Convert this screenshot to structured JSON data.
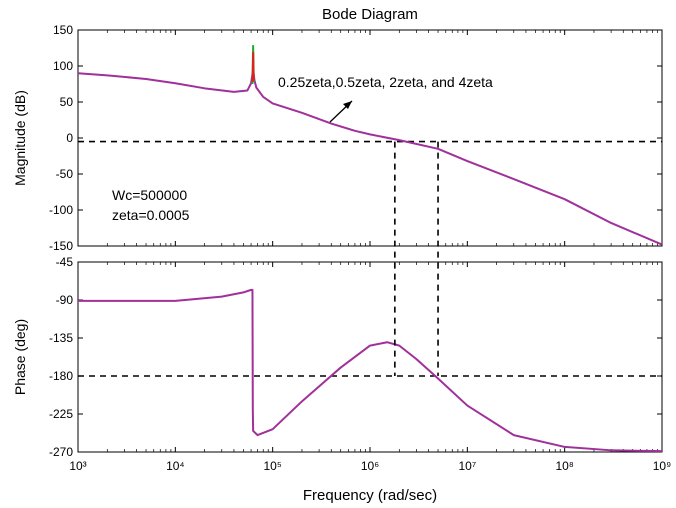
{
  "chart_data": {
    "title": "Bode Diagram",
    "xlabel": "Frequency  (rad/sec)",
    "x_scale": "log",
    "xlim": [
      1000,
      1000000000
    ],
    "x_ticks": [
      {
        "value": 1000,
        "label": "10³"
      },
      {
        "value": 10000,
        "label": "10⁴"
      },
      {
        "value": 100000,
        "label": "10⁵"
      },
      {
        "value": 1000000,
        "label": "10⁶"
      },
      {
        "value": 10000000,
        "label": "10⁷"
      },
      {
        "value": 100000000,
        "label": "10⁸"
      },
      {
        "value": 1000000000,
        "label": "10⁹"
      }
    ],
    "line_color": "#a0309a",
    "guide_lines": {
      "magnitude_ref": -5,
      "phase_ref": -180,
      "x_markers": [
        1800000,
        5000000
      ]
    },
    "panels": [
      {
        "type": "line",
        "ylabel": "Magnitude (dB)",
        "ylim": [
          -150,
          150
        ],
        "y_ticks": [
          150,
          100,
          50,
          0,
          -50,
          -100,
          -150
        ],
        "y_tick_labels": [
          "150",
          "100",
          "50",
          "0",
          "-50",
          "-100",
          "-150"
        ],
        "annotation": "0.25zeta,0.5zeta, 2zeta, and 4zeta",
        "params": [
          "Wc=500000",
          "zeta=0.0005"
        ],
        "series": [
          {
            "color": "#a0309a",
            "points": [
              [
                1000,
                90
              ],
              [
                2000,
                87
              ],
              [
                5000,
                82
              ],
              [
                10000,
                76
              ],
              [
                20000,
                69
              ],
              [
                40000,
                64
              ],
              [
                55000,
                66
              ],
              [
                60000,
                76
              ],
              [
                63000,
                95
              ],
              [
                65000,
                80
              ],
              [
                68000,
                70
              ],
              [
                80000,
                57
              ],
              [
                100000,
                48
              ],
              [
                200000,
                35
              ],
              [
                400000,
                20
              ],
              [
                700000,
                10
              ],
              [
                1000000,
                5
              ],
              [
                2000000,
                -3
              ],
              [
                5000000,
                -15
              ],
              [
                10000000,
                -32
              ],
              [
                30000000,
                -57
              ],
              [
                100000000,
                -85
              ],
              [
                300000000,
                -118
              ],
              [
                1000000000,
                -148
              ]
            ]
          },
          {
            "color": "#22aa22",
            "points": [
              [
                62000,
                75
              ],
              [
                63000,
                128
              ],
              [
                64000,
                78
              ]
            ]
          },
          {
            "color": "#dd2222",
            "points": [
              [
                62200,
                78
              ],
              [
                63000,
                118
              ],
              [
                63800,
                80
              ]
            ]
          }
        ]
      },
      {
        "type": "line",
        "ylabel": "Phase (deg)",
        "ylim": [
          -270,
          -45
        ],
        "y_ticks": [
          -45,
          -90,
          -135,
          -180,
          -225,
          -270
        ],
        "y_tick_labels": [
          "-45",
          "-90",
          "-135",
          "-180",
          "-225",
          "-270"
        ],
        "series": [
          {
            "color": "#a0309a",
            "points": [
              [
                1000,
                -91
              ],
              [
                10000,
                -91
              ],
              [
                30000,
                -86
              ],
              [
                50000,
                -81
              ],
              [
                60000,
                -78
              ],
              [
                62000,
                -78
              ],
              [
                62500,
                -220
              ],
              [
                63000,
                -245
              ],
              [
                70000,
                -250
              ],
              [
                100000,
                -243
              ],
              [
                200000,
                -210
              ],
              [
                500000,
                -170
              ],
              [
                1000000,
                -144
              ],
              [
                1500000,
                -140
              ],
              [
                2000000,
                -144
              ],
              [
                3000000,
                -160
              ],
              [
                5000000,
                -183
              ],
              [
                10000000,
                -215
              ],
              [
                30000000,
                -250
              ],
              [
                100000000,
                -264
              ],
              [
                300000000,
                -268
              ],
              [
                1000000000,
                -269
              ]
            ]
          }
        ]
      }
    ]
  }
}
